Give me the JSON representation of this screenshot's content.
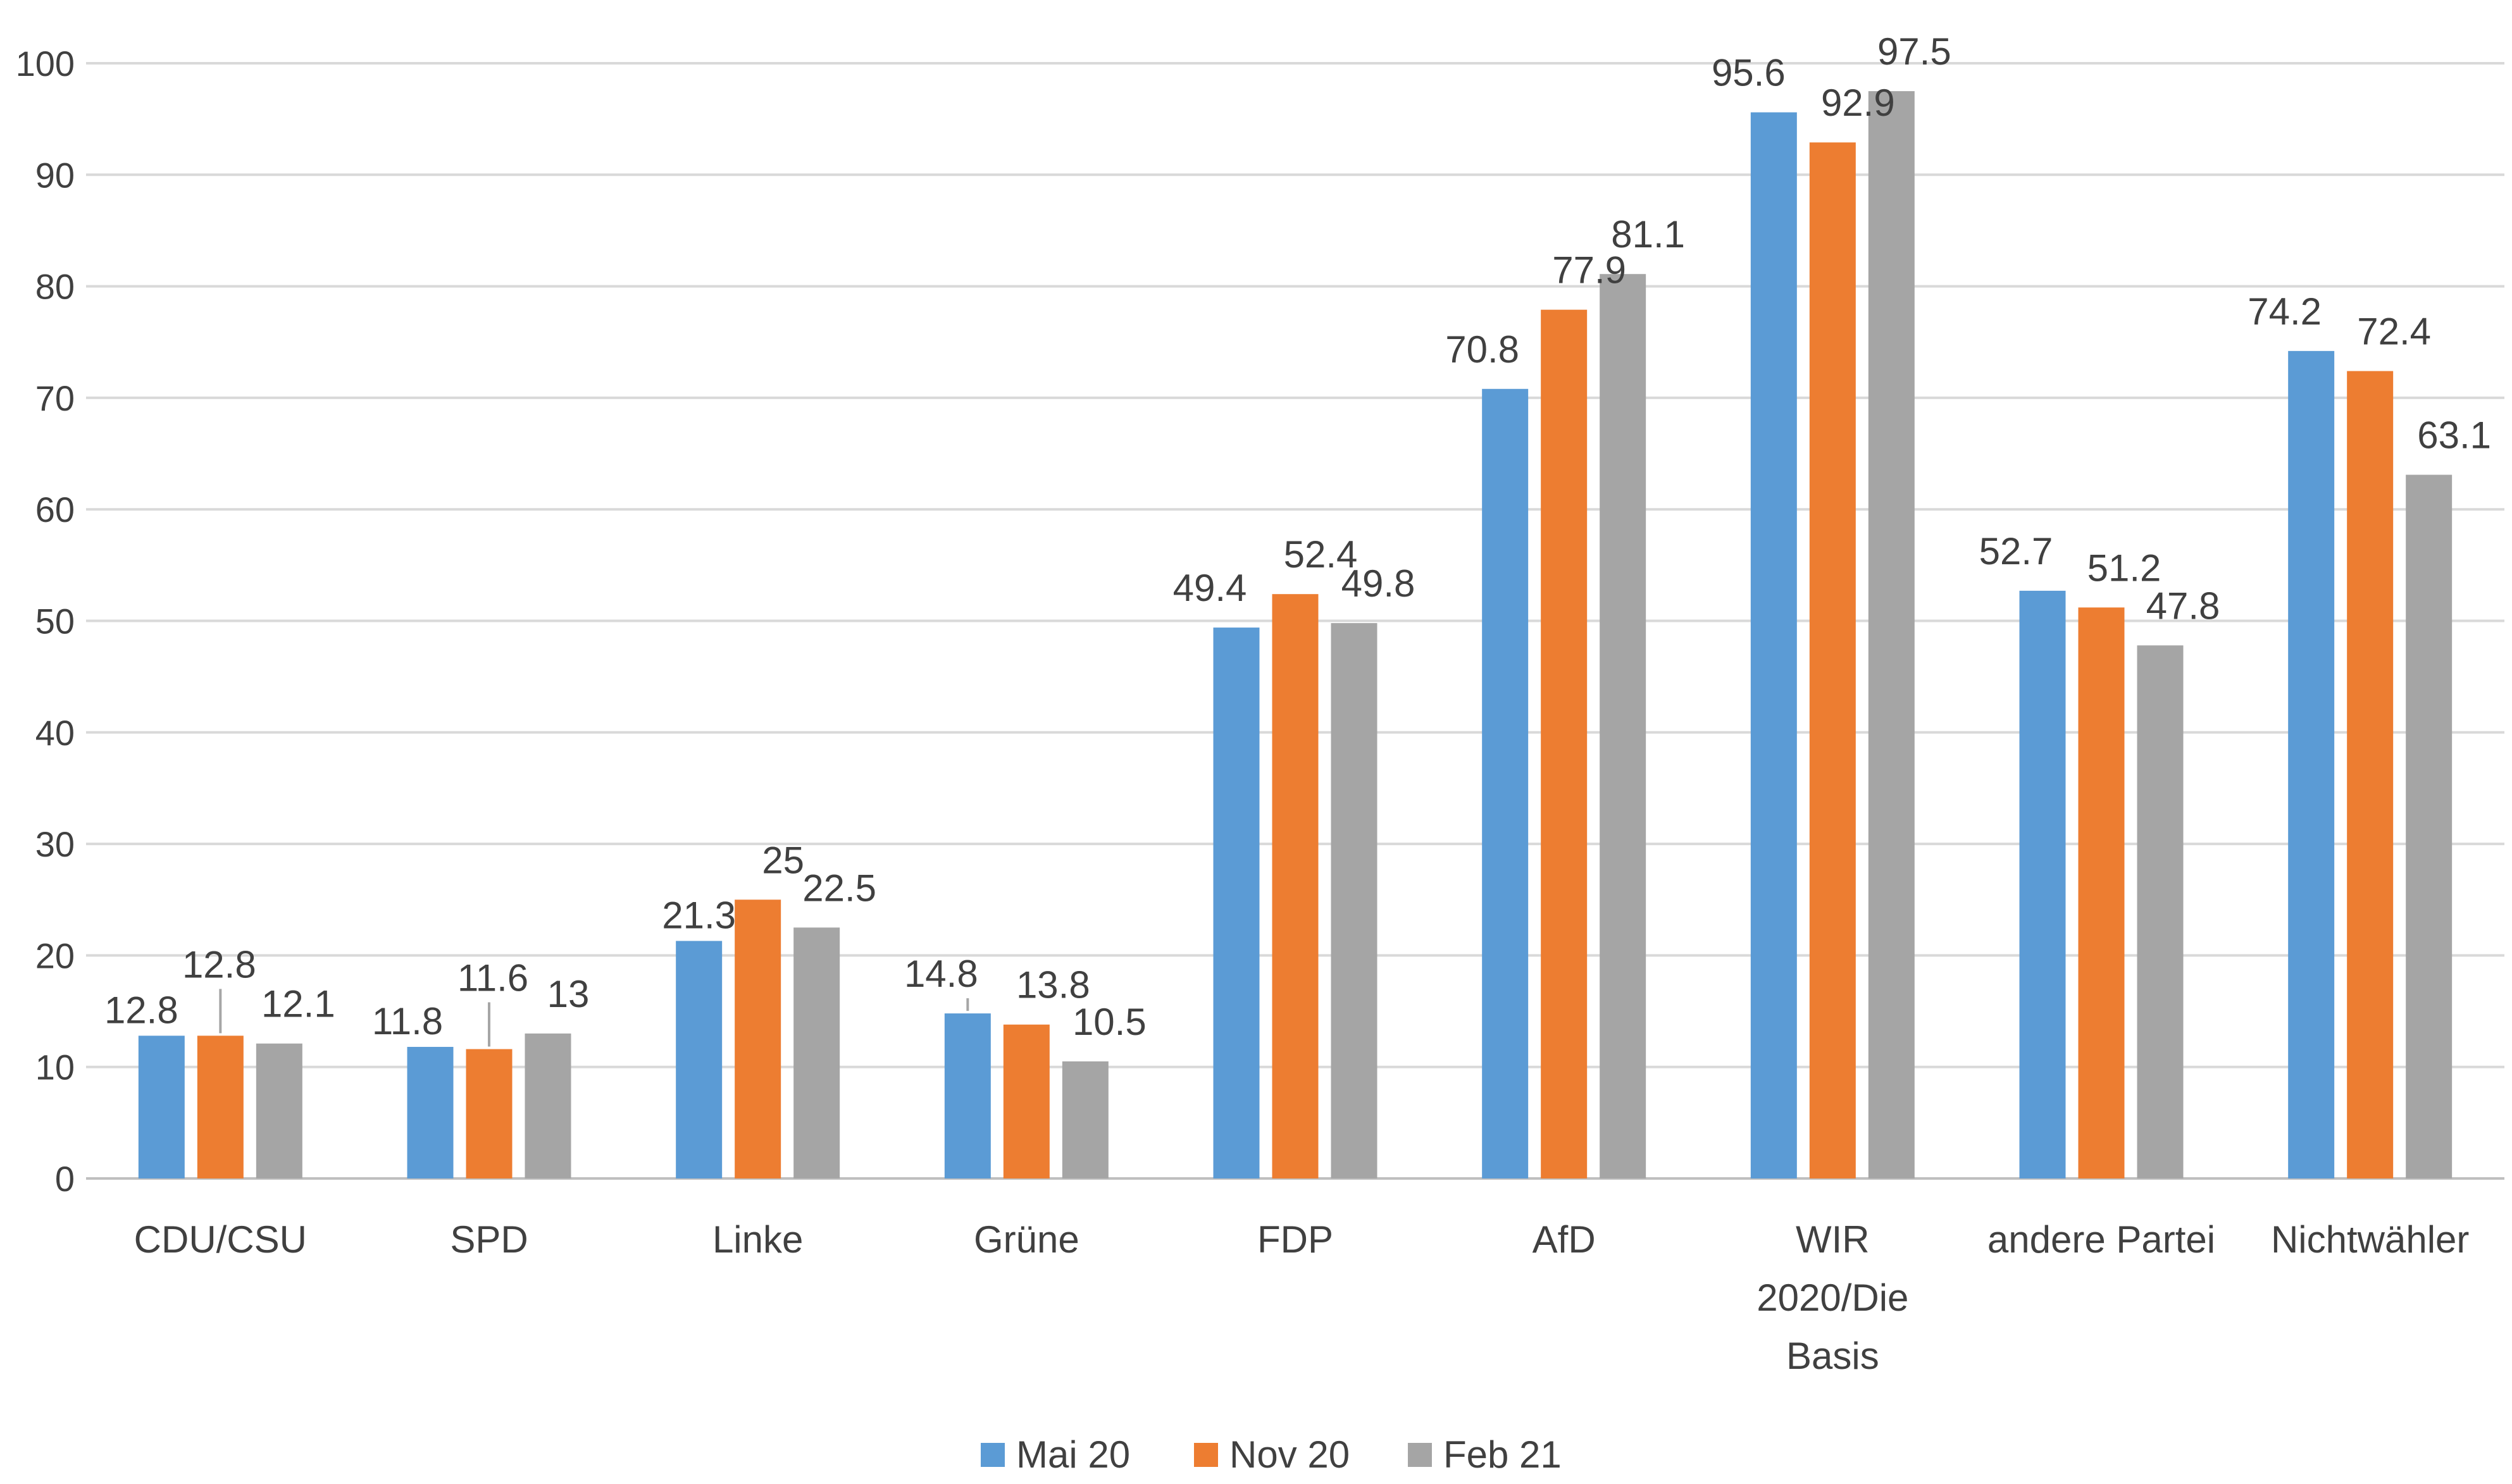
{
  "chart_data": {
    "type": "bar",
    "categories": [
      "CDU/CSU",
      "SPD",
      "Linke",
      "Grüne",
      "FDP",
      "AfD",
      "WIR 2020/Die Basis",
      "andere Partei",
      "Nichtwähler"
    ],
    "category_lines": [
      [
        "CDU/CSU"
      ],
      [
        "SPD"
      ],
      [
        "Linke"
      ],
      [
        "Grüne"
      ],
      [
        "FDP"
      ],
      [
        "AfD"
      ],
      [
        "WIR",
        "2020/Die",
        "Basis"
      ],
      [
        "andere Partei"
      ],
      [
        "Nichtwähler"
      ]
    ],
    "series": [
      {
        "name": "Mai 20",
        "color": "#5b9bd5",
        "values": [
          12.8,
          11.8,
          21.3,
          14.8,
          49.4,
          70.8,
          95.6,
          52.7,
          74.2
        ]
      },
      {
        "name": "Nov 20",
        "color": "#ed7d31",
        "values": [
          12.8,
          11.6,
          25,
          13.8,
          52.4,
          77.9,
          92.9,
          51.2,
          72.4
        ]
      },
      {
        "name": "Feb 21",
        "color": "#a5a5a5",
        "values": [
          12.1,
          13,
          22.5,
          10.5,
          49.8,
          81.1,
          97.5,
          47.8,
          63.1
        ]
      }
    ],
    "ylim": [
      0,
      100
    ],
    "yticks": [
      0,
      10,
      20,
      30,
      40,
      50,
      60,
      70,
      80,
      90,
      100
    ],
    "grid": true,
    "legend_position": "bottom",
    "title": "",
    "xlabel": "",
    "ylabel": ""
  }
}
